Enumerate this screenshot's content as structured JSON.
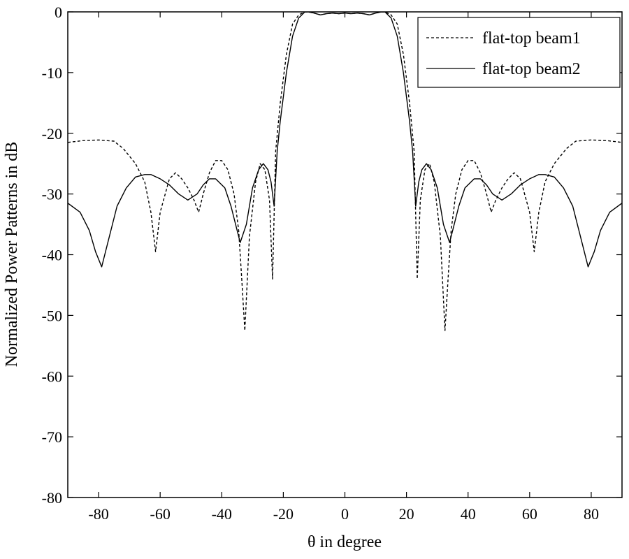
{
  "chart_data": {
    "type": "line",
    "title": "",
    "xlabel": "θ in degree",
    "ylabel": "Normalized Power Patterns in dB",
    "xlim": [
      -90,
      90
    ],
    "ylim": [
      -80,
      0
    ],
    "xticks": [
      -80,
      -60,
      -40,
      -20,
      0,
      20,
      40,
      60,
      80
    ],
    "yticks": [
      0,
      -10,
      -20,
      -30,
      -40,
      -50,
      -60,
      -70,
      -80
    ],
    "grid": false,
    "legend_position": "top-right",
    "series": [
      {
        "name": "flat-top beam1",
        "style": "dashed",
        "color": "#000000",
        "x": [
          -90,
          -85,
          -80,
          -75,
          -72,
          -68,
          -65,
          -63,
          -61.5,
          -60,
          -57,
          -55,
          -53,
          -51,
          -49,
          -47.5,
          -46,
          -44,
          -42,
          -40,
          -38,
          -36,
          -34.5,
          -33.5,
          -32.5,
          -31,
          -29,
          -27.5,
          -26,
          -24.5,
          -23.5,
          -22.5,
          -21,
          -19,
          -17,
          -15,
          -13,
          -12,
          -10,
          -8,
          -6,
          -4,
          -2,
          0,
          2,
          4,
          6,
          8,
          10,
          12,
          13,
          15,
          17,
          19,
          21,
          22.5,
          23.5,
          24.5,
          26,
          27.5,
          29,
          31,
          32.5,
          33.5,
          34.5,
          36,
          38,
          40,
          42,
          44,
          46,
          47.5,
          49,
          51,
          53,
          55,
          57,
          60,
          61.5,
          63,
          65,
          68,
          72,
          75,
          80,
          85,
          90
        ],
        "y": [
          -21.5,
          -21.2,
          -21.1,
          -21.3,
          -22.5,
          -25,
          -28,
          -33,
          -39.5,
          -33,
          -27.5,
          -26.5,
          -27.5,
          -29,
          -31,
          -33,
          -30,
          -26.5,
          -24.5,
          -24.5,
          -26,
          -30,
          -36,
          -44,
          -52.5,
          -37,
          -28,
          -25,
          -26,
          -31,
          -44,
          -23,
          -15,
          -7,
          -2,
          -0.5,
          0,
          0,
          -0.2,
          -0.5,
          -0.3,
          -0.2,
          -0.3,
          -0.2,
          -0.3,
          -0.2,
          -0.3,
          -0.5,
          -0.2,
          0,
          0,
          -0.5,
          -2,
          -7,
          -15,
          -23,
          -44,
          -31,
          -26,
          -25,
          -28,
          -37,
          -52.5,
          -44,
          -36,
          -30,
          -26,
          -24.5,
          -24.5,
          -26.5,
          -30,
          -33,
          -31,
          -29,
          -27.5,
          -26.5,
          -27.5,
          -33,
          -39.5,
          -33,
          -28,
          -25,
          -22.5,
          -21.3,
          -21.1,
          -21.2,
          -21.5
        ]
      },
      {
        "name": "flat-top beam2",
        "style": "solid",
        "color": "#000000",
        "x": [
          -90,
          -86,
          -83,
          -81,
          -79,
          -77,
          -74,
          -71,
          -68,
          -65,
          -63,
          -60,
          -57,
          -54,
          -51,
          -48,
          -46,
          -44,
          -42,
          -39,
          -37,
          -35,
          -34,
          -32,
          -30,
          -28,
          -26.5,
          -25,
          -24,
          -23,
          -22,
          -21,
          -19,
          -17,
          -15,
          -13,
          -12,
          -10,
          -8,
          -6,
          -4,
          -2,
          0,
          2,
          4,
          6,
          8,
          10,
          12,
          13,
          15,
          17,
          19,
          21,
          22,
          23,
          24,
          25,
          26.5,
          28,
          30,
          32,
          34,
          35,
          37,
          39,
          42,
          44,
          46,
          48,
          51,
          54,
          57,
          60,
          63,
          65,
          68,
          71,
          74,
          77,
          79,
          81,
          83,
          86,
          90
        ],
        "y": [
          -31.5,
          -33,
          -36,
          -39.5,
          -42,
          -38,
          -32,
          -29,
          -27.2,
          -26.8,
          -26.8,
          -27.5,
          -28.5,
          -30,
          -31,
          -30,
          -28.5,
          -27.5,
          -27.5,
          -29,
          -32,
          -36,
          -38,
          -35,
          -29,
          -26,
          -25,
          -26,
          -28,
          -32,
          -23,
          -18,
          -10,
          -4,
          -1,
          0,
          0,
          -0.2,
          -0.5,
          -0.3,
          -0.2,
          -0.3,
          -0.2,
          -0.3,
          -0.2,
          -0.3,
          -0.5,
          -0.2,
          0,
          0,
          -1,
          -4,
          -10,
          -18,
          -23,
          -32,
          -28,
          -26,
          -25,
          -26,
          -29,
          -35,
          -38,
          -36,
          -32,
          -29,
          -27.5,
          -27.5,
          -28.5,
          -30,
          -31,
          -30,
          -28.5,
          -27.5,
          -26.8,
          -26.8,
          -27.2,
          -29,
          -32,
          -38,
          -42,
          -39.5,
          -36,
          -33,
          -31.5
        ]
      }
    ]
  }
}
